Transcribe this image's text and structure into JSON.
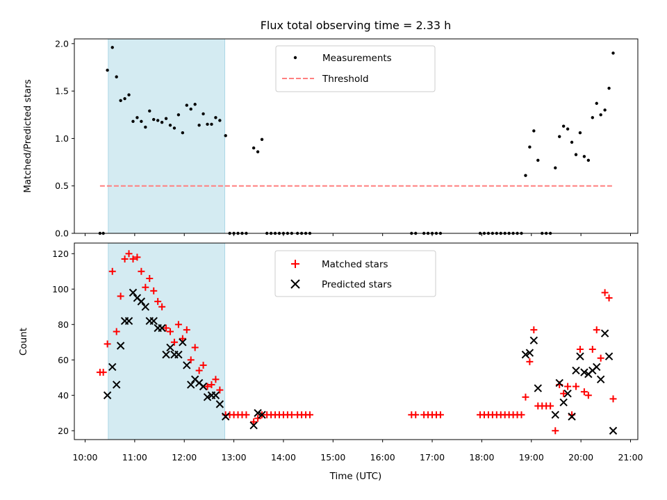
{
  "chart_data": [
    {
      "type": "scatter",
      "title": "Flux total observing time = 2.33 h",
      "xlabel": "",
      "ylabel": "Matched/Predicted stars",
      "xlim": [
        "10:00",
        "21:00"
      ],
      "ylim": [
        0,
        2.05
      ],
      "y_ticks": [
        0.0,
        0.5,
        1.0,
        1.5,
        2.0
      ],
      "y_tick_labels": [
        "0.0",
        "0.5",
        "1.0",
        "1.5",
        "2.0"
      ],
      "shaded_region": {
        "x_start": "10:28",
        "x_end": "12:49",
        "color": "#add8e6"
      },
      "legend": {
        "placement": "upper-center"
      },
      "series": [
        {
          "name": "Measurements",
          "marker": "dot",
          "color": "#000000",
          "points": [
            [
              "10:18",
              0
            ],
            [
              "10:22",
              0
            ],
            [
              "10:27",
              1.72
            ],
            [
              "10:33",
              1.96
            ],
            [
              "10:38",
              1.65
            ],
            [
              "10:43",
              1.4
            ],
            [
              "10:48",
              1.42
            ],
            [
              "10:53",
              1.46
            ],
            [
              "10:58",
              1.18
            ],
            [
              "11:03",
              1.22
            ],
            [
              "11:08",
              1.18
            ],
            [
              "11:13",
              1.12
            ],
            [
              "11:18",
              1.29
            ],
            [
              "11:23",
              1.2
            ],
            [
              "11:28",
              1.19
            ],
            [
              "11:33",
              1.17
            ],
            [
              "11:38",
              1.21
            ],
            [
              "11:43",
              1.14
            ],
            [
              "11:48",
              1.11
            ],
            [
              "11:53",
              1.25
            ],
            [
              "11:58",
              1.06
            ],
            [
              "12:03",
              1.35
            ],
            [
              "12:08",
              1.31
            ],
            [
              "12:13",
              1.36
            ],
            [
              "12:18",
              1.14
            ],
            [
              "12:23",
              1.26
            ],
            [
              "12:28",
              1.15
            ],
            [
              "12:33",
              1.15
            ],
            [
              "12:38",
              1.22
            ],
            [
              "12:43",
              1.19
            ],
            [
              "12:50",
              1.03
            ],
            [
              "12:55",
              0
            ],
            [
              "13:00",
              0
            ],
            [
              "13:05",
              0
            ],
            [
              "13:10",
              0
            ],
            [
              "13:15",
              0
            ],
            [
              "13:24",
              0.9
            ],
            [
              "13:29",
              0.86
            ],
            [
              "13:34",
              0.99
            ],
            [
              "13:40",
              0
            ],
            [
              "13:45",
              0
            ],
            [
              "13:50",
              0
            ],
            [
              "13:55",
              0
            ],
            [
              "14:00",
              0
            ],
            [
              "14:05",
              0
            ],
            [
              "14:10",
              0
            ],
            [
              "14:17",
              0
            ],
            [
              "14:22",
              0
            ],
            [
              "14:27",
              0
            ],
            [
              "14:32",
              0
            ],
            [
              "16:35",
              0
            ],
            [
              "16:40",
              0
            ],
            [
              "16:50",
              0
            ],
            [
              "16:55",
              0
            ],
            [
              "17:00",
              0
            ],
            [
              "17:05",
              0
            ],
            [
              "17:10",
              0
            ],
            [
              "17:58",
              0
            ],
            [
              "18:03",
              0
            ],
            [
              "18:08",
              0
            ],
            [
              "18:13",
              0
            ],
            [
              "18:18",
              0
            ],
            [
              "18:23",
              0
            ],
            [
              "18:28",
              0
            ],
            [
              "18:33",
              0
            ],
            [
              "18:38",
              0
            ],
            [
              "18:43",
              0
            ],
            [
              "18:48",
              0
            ],
            [
              "18:53",
              0.61
            ],
            [
              "18:58",
              0.91
            ],
            [
              "19:03",
              1.08
            ],
            [
              "19:08",
              0.77
            ],
            [
              "19:13",
              0
            ],
            [
              "19:18",
              0
            ],
            [
              "19:23",
              0
            ],
            [
              "19:29",
              0.69
            ],
            [
              "19:34",
              1.02
            ],
            [
              "19:39",
              1.13
            ],
            [
              "19:44",
              1.1
            ],
            [
              "19:49",
              0.96
            ],
            [
              "19:54",
              0.83
            ],
            [
              "19:59",
              1.06
            ],
            [
              "20:04",
              0.81
            ],
            [
              "20:09",
              0.77
            ],
            [
              "20:14",
              1.22
            ],
            [
              "20:19",
              1.37
            ],
            [
              "20:24",
              1.25
            ],
            [
              "20:29",
              1.3
            ],
            [
              "20:34",
              1.53
            ],
            [
              "20:39",
              1.9
            ]
          ]
        },
        {
          "name": "Threshold",
          "marker": "dashed-line",
          "color": "#ff7f7f",
          "points": [
            [
              "10:18",
              0.5
            ],
            [
              "20:39",
              0.5
            ]
          ]
        }
      ]
    },
    {
      "type": "scatter",
      "title": "",
      "xlabel": "Time (UTC)",
      "ylabel": "Count",
      "xlim": [
        "10:00",
        "21:00"
      ],
      "ylim": [
        15,
        126
      ],
      "x_ticks": [
        "10:00",
        "11:00",
        "12:00",
        "13:00",
        "14:00",
        "15:00",
        "16:00",
        "17:00",
        "18:00",
        "19:00",
        "20:00",
        "21:00"
      ],
      "y_ticks": [
        20,
        40,
        60,
        80,
        100,
        120
      ],
      "y_tick_labels": [
        "20",
        "40",
        "60",
        "80",
        "100",
        "120"
      ],
      "shaded_region": {
        "x_start": "10:28",
        "x_end": "12:49",
        "color": "#add8e6"
      },
      "legend": {
        "placement": "upper-center"
      },
      "series": [
        {
          "name": "Matched stars",
          "marker": "plus",
          "color": "#ff0000",
          "points": [
            [
              "10:18",
              53
            ],
            [
              "10:22",
              53
            ],
            [
              "10:27",
              69
            ],
            [
              "10:33",
              110
            ],
            [
              "10:38",
              76
            ],
            [
              "10:43",
              96
            ],
            [
              "10:48",
              117
            ],
            [
              "10:53",
              120
            ],
            [
              "10:58",
              117
            ],
            [
              "11:03",
              118
            ],
            [
              "11:08",
              110
            ],
            [
              "11:13",
              101
            ],
            [
              "11:18",
              106
            ],
            [
              "11:23",
              99
            ],
            [
              "11:28",
              93
            ],
            [
              "11:33",
              90
            ],
            [
              "11:38",
              78
            ],
            [
              "11:43",
              76
            ],
            [
              "11:48",
              70
            ],
            [
              "11:53",
              80
            ],
            [
              "11:58",
              72
            ],
            [
              "12:03",
              77
            ],
            [
              "12:08",
              60
            ],
            [
              "12:13",
              67
            ],
            [
              "12:18",
              54
            ],
            [
              "12:23",
              57
            ],
            [
              "12:28",
              45
            ],
            [
              "12:33",
              46
            ],
            [
              "12:38",
              49
            ],
            [
              "12:43",
              43
            ],
            [
              "12:50",
              29
            ],
            [
              "12:55",
              29
            ],
            [
              "13:00",
              29
            ],
            [
              "13:05",
              29
            ],
            [
              "13:10",
              29
            ],
            [
              "13:15",
              29
            ],
            [
              "13:24",
              25
            ],
            [
              "13:29",
              27
            ],
            [
              "13:34",
              29
            ],
            [
              "13:40",
              29
            ],
            [
              "13:45",
              29
            ],
            [
              "13:50",
              29
            ],
            [
              "13:55",
              29
            ],
            [
              "14:00",
              29
            ],
            [
              "14:05",
              29
            ],
            [
              "14:10",
              29
            ],
            [
              "14:17",
              29
            ],
            [
              "14:22",
              29
            ],
            [
              "14:27",
              29
            ],
            [
              "14:32",
              29
            ],
            [
              "16:35",
              29
            ],
            [
              "16:40",
              29
            ],
            [
              "16:50",
              29
            ],
            [
              "16:55",
              29
            ],
            [
              "17:00",
              29
            ],
            [
              "17:05",
              29
            ],
            [
              "17:10",
              29
            ],
            [
              "17:58",
              29
            ],
            [
              "18:03",
              29
            ],
            [
              "18:08",
              29
            ],
            [
              "18:13",
              29
            ],
            [
              "18:18",
              29
            ],
            [
              "18:23",
              29
            ],
            [
              "18:28",
              29
            ],
            [
              "18:33",
              29
            ],
            [
              "18:38",
              29
            ],
            [
              "18:43",
              29
            ],
            [
              "18:48",
              29
            ],
            [
              "18:53",
              39
            ],
            [
              "18:58",
              59
            ],
            [
              "19:03",
              77
            ],
            [
              "19:08",
              34
            ],
            [
              "19:13",
              34
            ],
            [
              "19:18",
              34
            ],
            [
              "19:23",
              34
            ],
            [
              "19:29",
              20
            ],
            [
              "19:34",
              46
            ],
            [
              "19:39",
              41
            ],
            [
              "19:44",
              45
            ],
            [
              "19:49",
              29
            ],
            [
              "19:54",
              45
            ],
            [
              "19:59",
              66
            ],
            [
              "20:04",
              42
            ],
            [
              "20:09",
              40
            ],
            [
              "20:14",
              66
            ],
            [
              "20:19",
              77
            ],
            [
              "20:24",
              61
            ],
            [
              "20:29",
              98
            ],
            [
              "20:34",
              95
            ],
            [
              "20:39",
              38
            ]
          ]
        },
        {
          "name": "Predicted stars",
          "marker": "x",
          "color": "#000000",
          "points": [
            [
              "10:27",
              40
            ],
            [
              "10:33",
              56
            ],
            [
              "10:38",
              46
            ],
            [
              "10:43",
              68
            ],
            [
              "10:48",
              82
            ],
            [
              "10:53",
              82
            ],
            [
              "10:58",
              98
            ],
            [
              "11:03",
              95
            ],
            [
              "11:08",
              93
            ],
            [
              "11:13",
              90
            ],
            [
              "11:18",
              82
            ],
            [
              "11:23",
              82
            ],
            [
              "11:28",
              78
            ],
            [
              "11:33",
              78
            ],
            [
              "11:38",
              63
            ],
            [
              "11:43",
              67
            ],
            [
              "11:48",
              63
            ],
            [
              "11:53",
              63
            ],
            [
              "11:58",
              70
            ],
            [
              "12:03",
              57
            ],
            [
              "12:08",
              46
            ],
            [
              "12:13",
              49
            ],
            [
              "12:18",
              47
            ],
            [
              "12:23",
              45
            ],
            [
              "12:28",
              39
            ],
            [
              "12:33",
              40
            ],
            [
              "12:38",
              40
            ],
            [
              "12:43",
              35
            ],
            [
              "12:50",
              28
            ],
            [
              "13:24",
              23
            ],
            [
              "13:29",
              30
            ],
            [
              "13:34",
              29
            ],
            [
              "18:53",
              63
            ],
            [
              "18:58",
              64
            ],
            [
              "19:03",
              71
            ],
            [
              "19:08",
              44
            ],
            [
              "19:29",
              29
            ],
            [
              "19:34",
              47
            ],
            [
              "19:39",
              36
            ],
            [
              "19:44",
              41
            ],
            [
              "19:49",
              28
            ],
            [
              "19:54",
              54
            ],
            [
              "19:59",
              62
            ],
            [
              "20:04",
              53
            ],
            [
              "20:09",
              52
            ],
            [
              "20:14",
              54
            ],
            [
              "20:19",
              56
            ],
            [
              "20:24",
              49
            ],
            [
              "20:29",
              75
            ],
            [
              "20:34",
              62
            ],
            [
              "20:39",
              20
            ]
          ]
        }
      ]
    }
  ]
}
